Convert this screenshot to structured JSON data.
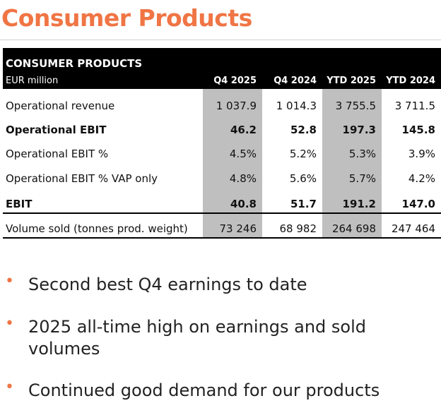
{
  "header": {
    "title": "Consumer Products"
  },
  "table": {
    "title": "CONSUMER PRODUCTS",
    "unit": "EUR million",
    "columns": [
      "Q4 2025",
      "Q4 2024",
      "YTD 2025",
      "YTD 2024"
    ],
    "rows": [
      {
        "label": "Operational revenue",
        "cells": [
          "1 037.9",
          "1 014.3",
          "3 755.5",
          "3 711.5"
        ]
      },
      {
        "label": "Operational EBIT",
        "cells": [
          "46.2",
          "52.8",
          "197.3",
          "145.8"
        ],
        "bold": true
      },
      {
        "label": "Operational EBIT %",
        "cells": [
          "4.5%",
          "5.2%",
          "5.3%",
          "3.9%"
        ]
      },
      {
        "label": "Operational EBIT % VAP only",
        "cells": [
          "4.8%",
          "5.6%",
          "5.7%",
          "4.2%"
        ]
      },
      {
        "label": "EBIT",
        "cells": [
          "40.8",
          "51.7",
          "191.2",
          "147.0"
        ],
        "bold": true
      },
      {
        "label": "Volume sold (tonnes prod. weight)",
        "cells": [
          "73 246",
          "68 982",
          "264 698",
          "247 464"
        ]
      }
    ]
  },
  "bullets": [
    "Second best Q4 earnings to date",
    "2025 all-time high on earnings and sold volumes",
    "Continued good demand for our products"
  ]
}
